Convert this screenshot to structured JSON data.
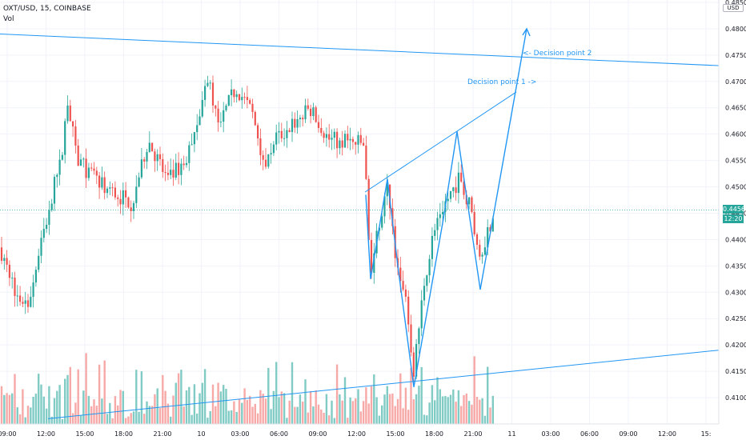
{
  "header": {
    "symbol_line": "OXT/USD, 15, COINBASE",
    "volume_label": "Vol"
  },
  "price_axis": {
    "currency": "USD",
    "ticks": [
      "0.4850",
      "0.4800",
      "0.4750",
      "0.4700",
      "0.4650",
      "0.4600",
      "0.4550",
      "0.4500",
      "0.4450",
      "0.4400",
      "0.4350",
      "0.4300",
      "0.4250",
      "0.4200",
      "0.4150",
      "0.4100"
    ],
    "current_price": "0.4456",
    "countdown": "12:20"
  },
  "time_axis": {
    "ticks": [
      "09:00",
      "12:00",
      "15:00",
      "18:00",
      "21:00",
      "10",
      "03:00",
      "06:00",
      "09:00",
      "12:00",
      "15:00",
      "18:00",
      "21:00",
      "11",
      "03:00",
      "06:00",
      "09:00",
      "12:00",
      "15:"
    ]
  },
  "annotations": {
    "decision_point_1": "Decision point 1 ->",
    "decision_point_2": "<- Decision point 2"
  },
  "colors": {
    "up": "#26a69a",
    "down": "#ef5350",
    "vol_up": "#80cbc4",
    "vol_down": "#f7a9a7",
    "drawing": "#2196f3",
    "grid": "#f0f3fa"
  },
  "chart_data": {
    "type": "candlestick",
    "title": "OXT/USD, 15, COINBASE",
    "ylim": [
      0.4075,
      0.486
    ],
    "x_ticks": [
      "09:00",
      "12:00",
      "15:00",
      "18:00",
      "21:00",
      "10",
      "03:00",
      "06:00",
      "09:00",
      "12:00",
      "15:00",
      "18:00",
      "21:00",
      "11",
      "03:00",
      "06:00",
      "09:00",
      "12:00",
      "15:"
    ],
    "last_price": 0.4456,
    "y_ticks": [
      0.485,
      0.48,
      0.475,
      0.47,
      0.465,
      0.46,
      0.455,
      0.45,
      0.445,
      0.44,
      0.435,
      0.43,
      0.425,
      0.42,
      0.415,
      0.41
    ],
    "grid": true,
    "drawn_path_prices": [
      0.4485,
      0.4325,
      0.4515,
      0.435,
      0.412,
      0.444,
      0.4605,
      0.4305,
      0.48
    ],
    "resistance_line": [
      0.479,
      0.473
    ],
    "support_line": [
      0.406,
      0.419
    ],
    "rising_line": [
      0.449,
      0.468
    ]
  }
}
